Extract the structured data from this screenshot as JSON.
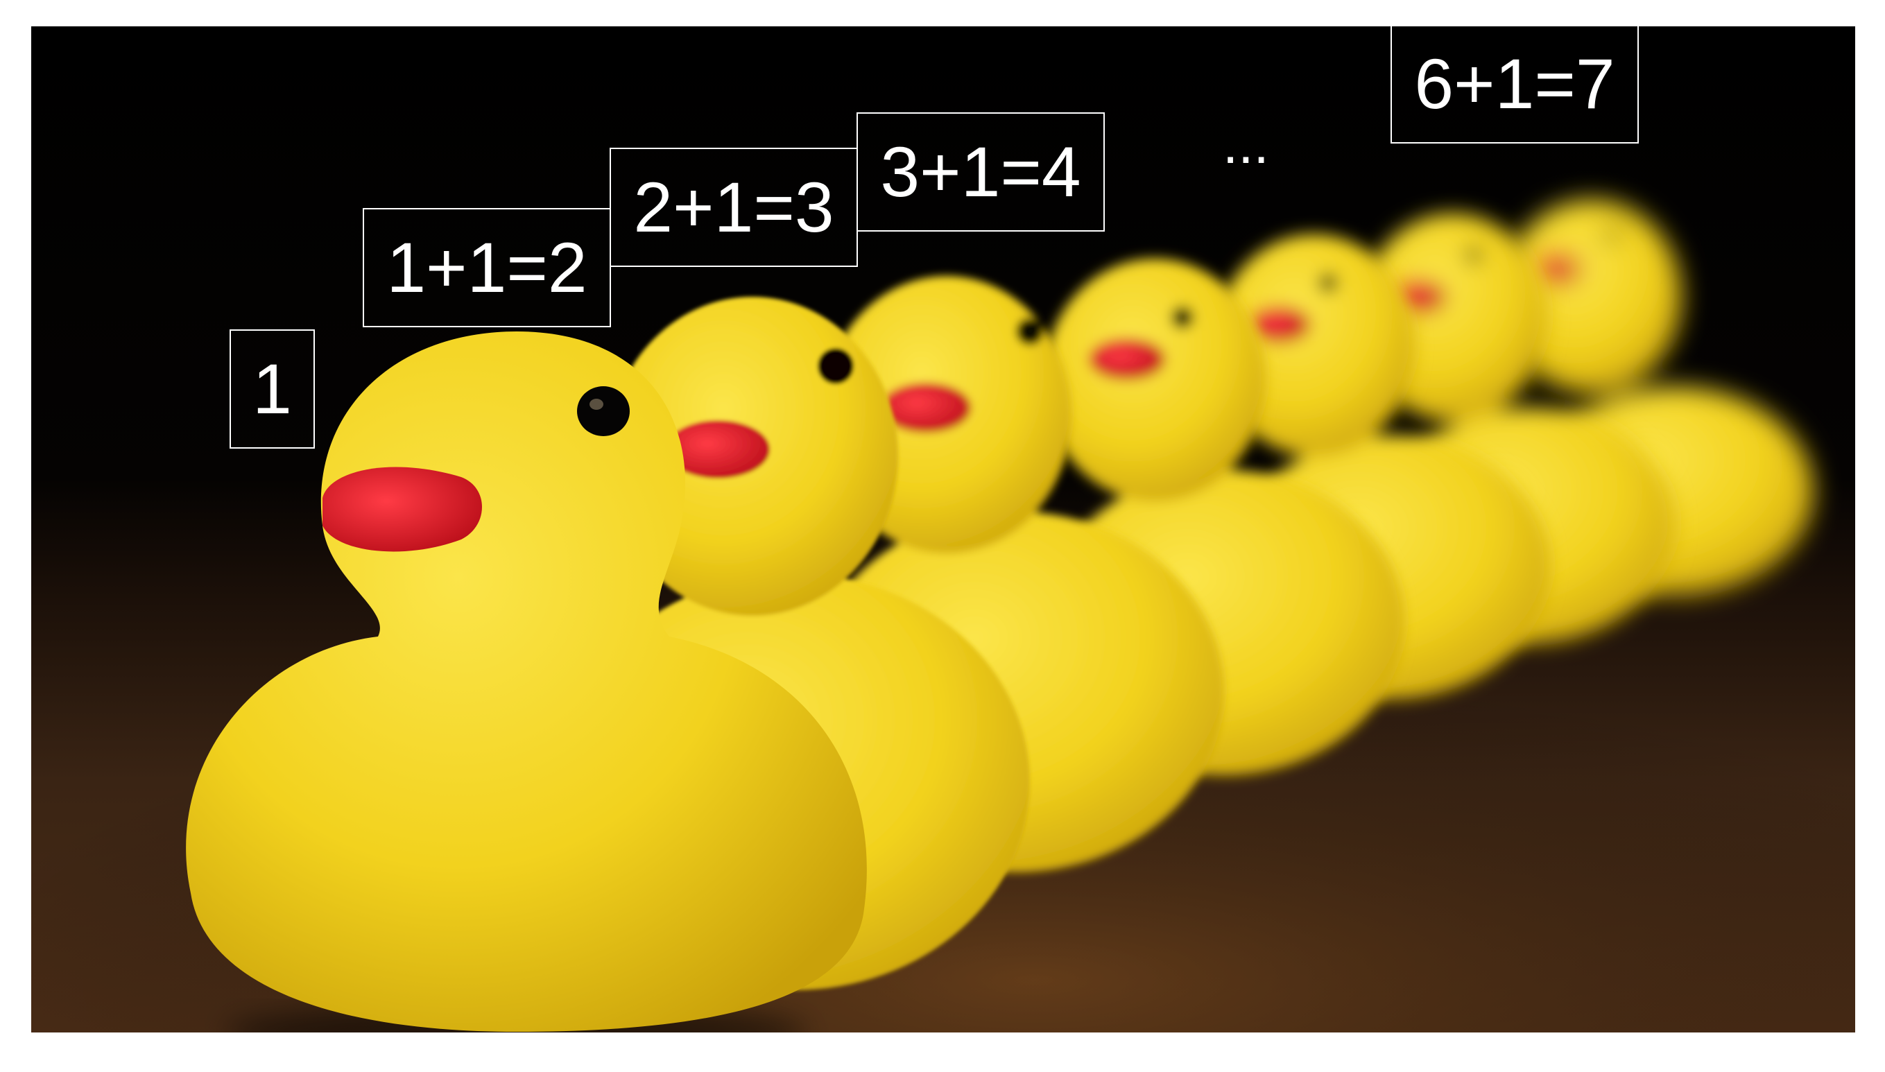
{
  "labels": {
    "duck1": "1",
    "duck2": "1+1=2",
    "duck3": "2+1=3",
    "duck4": "3+1=4",
    "ellipsis": "...",
    "duck7": "6+1=7"
  },
  "ducks_count": 7,
  "colors": {
    "background_top": "#000000",
    "table": "#2b1a10",
    "duck_yellow": "#f2d21e",
    "beak_red": "#d8161f",
    "eye": "#0a0a0a",
    "label_border": "#ffffff",
    "label_text": "#ffffff"
  }
}
